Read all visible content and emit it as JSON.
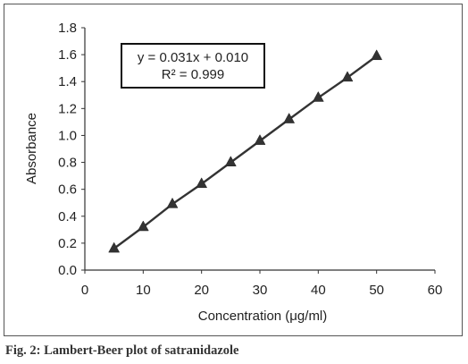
{
  "chart_data": {
    "type": "line",
    "xlabel": "Concentration (μg/ml)",
    "ylabel": "Absorbance",
    "xlim": [
      0,
      60
    ],
    "ylim": [
      0,
      1.8
    ],
    "x_ticks": [
      "0",
      "10",
      "20",
      "30",
      "40",
      "50",
      "60"
    ],
    "y_ticks": [
      "0.0",
      "0.2",
      "0.4",
      "0.6",
      "0.8",
      "1.0",
      "1.2",
      "1.4",
      "1.6",
      "1.8"
    ],
    "grid": false,
    "marker": "triangle",
    "line_color": "#333333",
    "series": [
      {
        "x": [
          5,
          10,
          15,
          20,
          25,
          30,
          35,
          40,
          45,
          50
        ],
        "y": [
          0.16,
          0.32,
          0.49,
          0.64,
          0.8,
          0.96,
          1.12,
          1.28,
          1.43,
          1.59
        ]
      }
    ],
    "annotation": {
      "line1": "y = 0.031x + 0.010",
      "line2": "R² = 0.999"
    }
  },
  "caption": "Fig. 2: Lambert-Beer plot of satranidazole"
}
